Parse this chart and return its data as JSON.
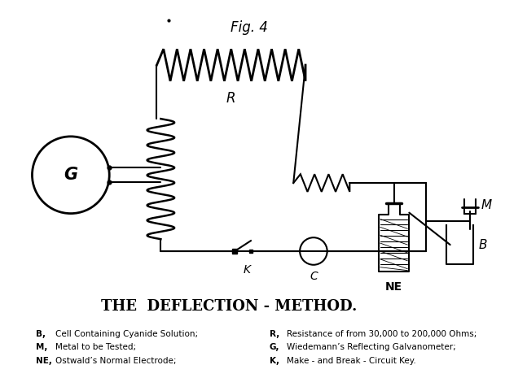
{
  "fig_title": "Fig. 4",
  "main_title": "THE  DEFLECTION - METHOD.",
  "legend_items": [
    [
      "B,",
      "Cell Containing Cyanide Solution;",
      "R,",
      "Resistance of from 30,000 to 200,000 Ohms;"
    ],
    [
      "M,",
      "Metal to be Tested;",
      "G,",
      "Wiedemann’s Reflecting Galvanometer;"
    ],
    [
      "NE,",
      "Ostwald’s Normal Electrode;",
      "K,",
      "Make - and Break - Circuit Key."
    ]
  ],
  "bg_color": "#ffffff",
  "line_color": "#000000",
  "lw": 1.5
}
